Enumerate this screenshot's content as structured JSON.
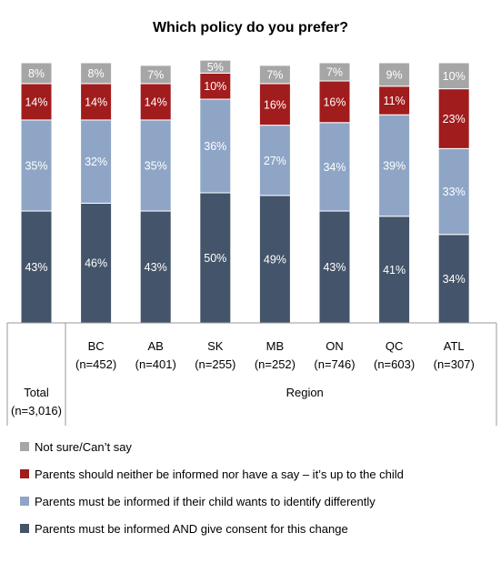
{
  "chart_data": {
    "type": "bar",
    "stacked": true,
    "percent_stacked": true,
    "title": "Which policy do you prefer?",
    "xlabel": "",
    "ylabel": "",
    "ylim": [
      0,
      100
    ],
    "grid": false,
    "legend_position": "bottom",
    "categories": [
      {
        "line1": "Total",
        "line2": "(n=3,016)"
      },
      {
        "line1": "BC",
        "line2": "(n=452)"
      },
      {
        "line1": "AB",
        "line2": "(n=401)"
      },
      {
        "line1": "SK",
        "line2": "(n=255)"
      },
      {
        "line1": "MB",
        "line2": "(n=252)"
      },
      {
        "line1": "ON",
        "line2": "(n=746)"
      },
      {
        "line1": "QC",
        "line2": "(n=603)"
      },
      {
        "line1": "ATL",
        "line2": "(n=307)"
      }
    ],
    "group_label": "Region",
    "series": [
      {
        "name": "Parents must be informed AND give consent for this change",
        "color": "#44546a",
        "values": [
          43,
          46,
          43,
          50,
          49,
          43,
          41,
          34
        ]
      },
      {
        "name": "Parents must be informed if their child wants to identify differently",
        "color": "#8ea5c6",
        "values": [
          35,
          32,
          35,
          36,
          27,
          34,
          39,
          33
        ]
      },
      {
        "name": "Parents should neither be informed nor have a say – it’s up to the child",
        "color": "#a11c1c",
        "values": [
          14,
          14,
          14,
          10,
          16,
          16,
          11,
          23
        ]
      },
      {
        "name": "Not sure/Can’t say",
        "color": "#a6a6a6",
        "values": [
          8,
          8,
          7,
          5,
          7,
          7,
          9,
          10
        ]
      }
    ],
    "legend_order": [
      3,
      2,
      1,
      0
    ]
  }
}
